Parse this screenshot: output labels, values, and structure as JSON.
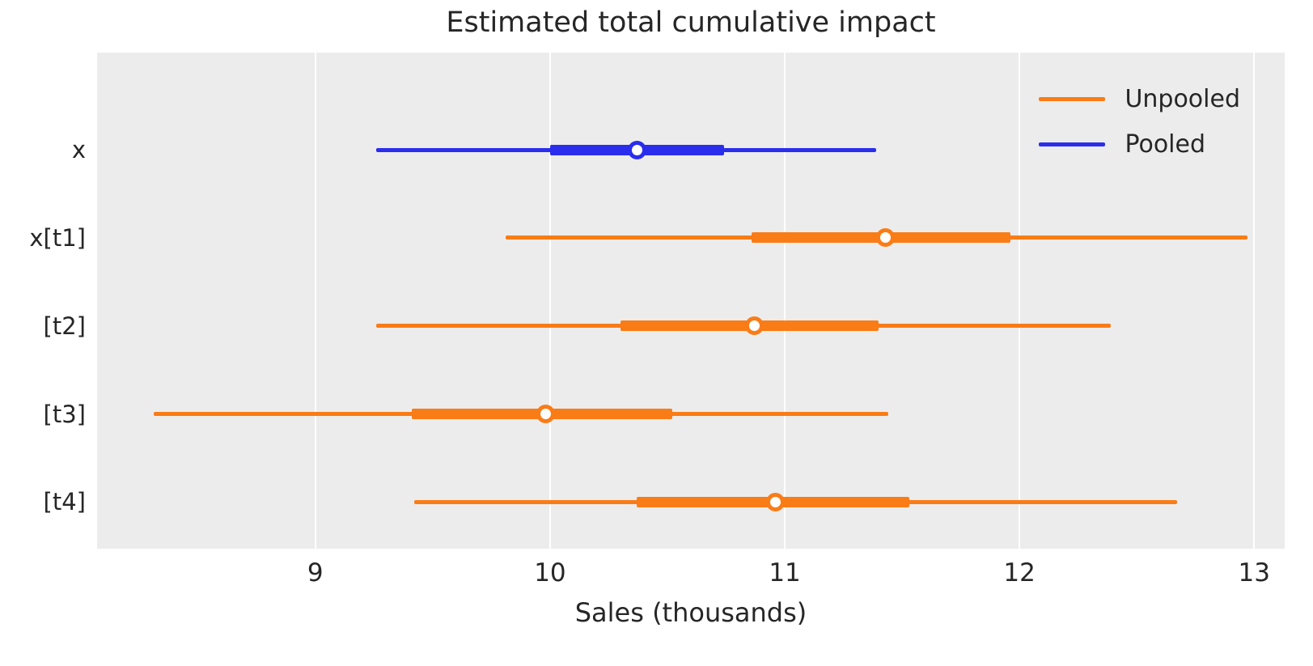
{
  "chart_data": {
    "type": "forest",
    "title": "Estimated total cumulative impact",
    "xlabel": "Sales (thousands)",
    "ylabel": "",
    "xlim": [
      8.07,
      13.13
    ],
    "x_ticks": [
      "9",
      "10",
      "11",
      "12",
      "13"
    ],
    "x_tick_values": [
      9,
      10,
      11,
      12,
      13
    ],
    "categories": [
      "x",
      "x[t1]",
      "[t2]",
      "[t3]",
      "[t4]"
    ],
    "grid": "vertical-white-gridlines-only",
    "plot_bg": "#ececec",
    "grid_color": "#ffffff",
    "text_color": "#262626",
    "legend": {
      "position": "upper-right",
      "frame": false,
      "entries": [
        {
          "label": "Unpooled",
          "color": "#fa7c17"
        },
        {
          "label": "Pooled",
          "color": "#2a2eec"
        }
      ]
    },
    "rows": [
      {
        "label": "x",
        "series": "Pooled",
        "color": "#2a2eec",
        "thin_interval": [
          9.26,
          11.39
        ],
        "thick_interval": [
          10.0,
          10.74
        ],
        "point": 10.37
      },
      {
        "label": "x[t1]",
        "series": "Unpooled",
        "color": "#fa7c17",
        "thin_interval": [
          9.81,
          12.97
        ],
        "thick_interval": [
          10.86,
          11.96
        ],
        "point": 11.43
      },
      {
        "label": "[t2]",
        "series": "Unpooled",
        "color": "#fa7c17",
        "thin_interval": [
          9.26,
          12.39
        ],
        "thick_interval": [
          10.3,
          11.4
        ],
        "point": 10.87
      },
      {
        "label": "[t3]",
        "series": "Unpooled",
        "color": "#fa7c17",
        "thin_interval": [
          8.31,
          11.44
        ],
        "thick_interval": [
          9.41,
          10.52
        ],
        "point": 9.98
      },
      {
        "label": "[t4]",
        "series": "Unpooled",
        "color": "#fa7c17",
        "thin_interval": [
          9.42,
          12.67
        ],
        "thick_interval": [
          10.37,
          11.53
        ],
        "point": 10.96
      }
    ],
    "row_top_fraction_start": 0.196,
    "row_top_fraction_step": 0.1775
  }
}
